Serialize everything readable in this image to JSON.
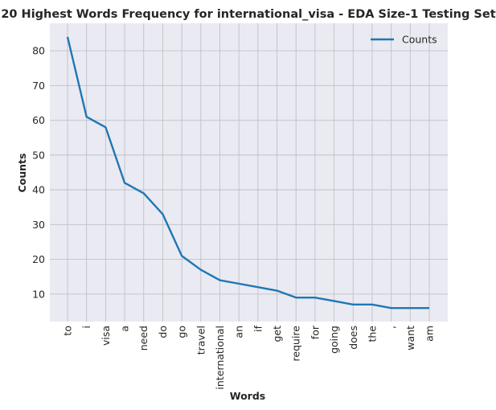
{
  "chart_data": {
    "type": "line",
    "title": "20 Highest Words Frequency for international_visa - EDA Size-1 Testing Set",
    "xlabel": "Words",
    "ylabel": "Counts",
    "categories": [
      "to",
      "i",
      "visa",
      "a",
      "need",
      "do",
      "go",
      "travel",
      "international",
      "an",
      "if",
      "get",
      "require",
      "for",
      "going",
      "does",
      "the",
      ",",
      "want",
      "am"
    ],
    "series": [
      {
        "name": "Counts",
        "values": [
          84,
          61,
          58,
          42,
          39,
          33,
          21,
          17,
          14,
          13,
          12,
          11,
          9,
          9,
          8,
          7,
          7,
          6,
          6,
          6
        ]
      }
    ],
    "ylim": [
      2.1,
      87.9
    ],
    "yticks": [
      10,
      20,
      30,
      40,
      50,
      60,
      70,
      80
    ],
    "grid": true,
    "legend": "top-right",
    "colors": {
      "line": "#1f77b4",
      "plot_bg": "#eaeaf2",
      "grid": "#c0c0c8",
      "text": "#262626"
    }
  }
}
